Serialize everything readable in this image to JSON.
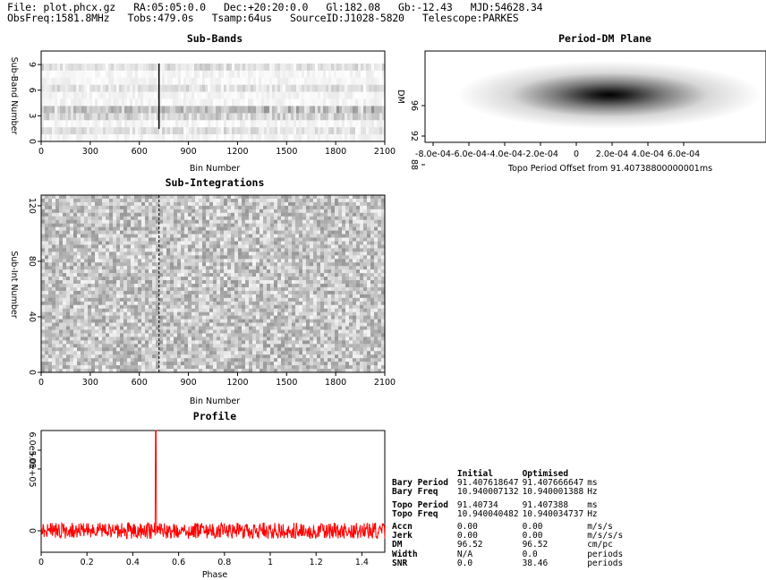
{
  "header": {
    "line1": "File: plot.phcx.gz   RA:05:05:0.0   Dec:+20:20:0.0   Gl:182.08   Gb:-12.43   MJD:54628.34",
    "line2": "ObsFreq:1581.8MHz   Tobs:479.0s   Tsamp:64us   SourceID:J1028-5820   Telescope:PARKES"
  },
  "chart_data": [
    {
      "id": "subbands",
      "type": "heatmap",
      "title": "Sub-Bands",
      "xlabel": "Bin Number",
      "ylabel": "Sub-Band Number",
      "xlim": [
        0,
        2100
      ],
      "ylim": [
        0,
        11
      ],
      "xticks": [
        "0",
        "300",
        "600",
        "900",
        "1200",
        "1500",
        "1800",
        "2100"
      ],
      "yticks": [
        "0",
        "3",
        "6",
        "9"
      ],
      "n_rows": 11,
      "pulse_bin": 720,
      "colormap": "grayscale"
    },
    {
      "id": "pdm",
      "type": "heatmap",
      "title": "Period-DM Plane",
      "xlabel": "Topo Period Offset from 91.40738800000001ms",
      "ylabel": "DM",
      "xticks": [
        "-8.0e-04",
        "-6.0e-04",
        "-4.0e-04",
        "-2.0e-04",
        "0",
        "2.0e-04",
        "4.0e-04",
        "6.0e-04"
      ],
      "yticks": [
        "88",
        "92",
        "96"
      ],
      "peak_offset": 0,
      "peak_dm": 96.52,
      "colormap": "grayscale"
    },
    {
      "id": "subints",
      "type": "heatmap",
      "title": "Sub-Integrations",
      "xlabel": "Bin Number",
      "ylabel": "Sub-Int Number",
      "xlim": [
        0,
        2100
      ],
      "ylim": [
        0,
        128
      ],
      "xticks": [
        "0",
        "300",
        "600",
        "900",
        "1200",
        "1500",
        "1800",
        "2100"
      ],
      "yticks": [
        "0",
        "40",
        "80",
        "120"
      ],
      "pulse_bin": 720,
      "colormap": "grayscale"
    },
    {
      "id": "profile",
      "type": "line",
      "title": "Profile",
      "xlabel": "Phase",
      "ylabel": "",
      "xlim": [
        0,
        1.5
      ],
      "xticks": [
        "0",
        "0.2",
        "0.4",
        "0.6",
        "0.8",
        "1",
        "1.2",
        "1.4"
      ],
      "yticks": [
        "0",
        "5.0e+05",
        "6.0e+05"
      ],
      "peak_phase": 0.5,
      "color": "#ff0000"
    }
  ],
  "stats": {
    "columns": [
      "Initial",
      "Optimised"
    ],
    "rows": [
      {
        "label": "Bary Period",
        "initial": "91.407618647",
        "optimised": "91.407666647",
        "unit": "ms"
      },
      {
        "label": "Bary Freq",
        "initial": "10.940007132",
        "optimised": "10.940001388",
        "unit": "Hz"
      },
      {
        "label": "Topo Period",
        "initial": "91.40734",
        "optimised": "91.407388",
        "unit": "ms"
      },
      {
        "label": "Topo Freq",
        "initial": "10.940040482",
        "optimised": "10.940034737",
        "unit": "Hz"
      },
      {
        "label": "Accn",
        "initial": "0.00",
        "optimised": "0.00",
        "unit": "m/s/s"
      },
      {
        "label": "Jerk",
        "initial": "0.00",
        "optimised": "0.00",
        "unit": "m/s/s/s"
      },
      {
        "label": "DM",
        "initial": "96.52",
        "optimised": "96.52",
        "unit": "cm/pc"
      },
      {
        "label": "Width",
        "initial": "N/A",
        "optimised": "0.0",
        "unit": "periods"
      },
      {
        "label": "SNR",
        "initial": "0.0",
        "optimised": "38.46",
        "unit": "periods"
      }
    ]
  }
}
